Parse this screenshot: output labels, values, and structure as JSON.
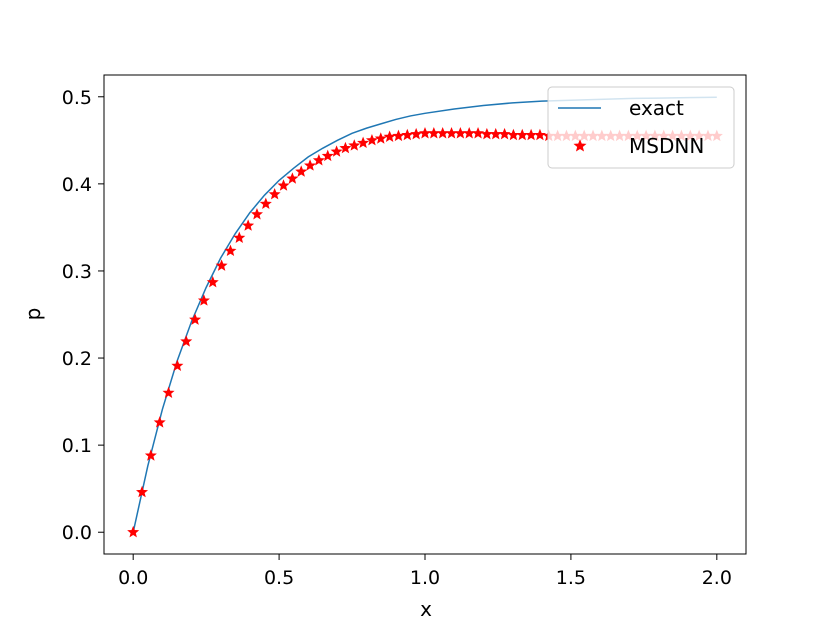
{
  "chart_data": {
    "type": "line",
    "title": "",
    "xlabel": "x",
    "ylabel": "p",
    "xlim": [
      -0.1,
      2.1
    ],
    "ylim": [
      -0.025,
      0.525
    ],
    "xticks": [
      0.0,
      0.5,
      1.0,
      1.5,
      2.0
    ],
    "xtick_labels": [
      "0.0",
      "0.5",
      "1.0",
      "1.5",
      "2.0"
    ],
    "yticks": [
      0.0,
      0.1,
      0.2,
      0.3,
      0.4,
      0.5
    ],
    "ytick_labels": [
      "0.0",
      "0.1",
      "0.2",
      "0.3",
      "0.4",
      "0.5"
    ],
    "grid": false,
    "legend": {
      "placement": "upper-right"
    },
    "series": [
      {
        "name": "exact",
        "kind": "line",
        "color": "#1f77b4",
        "x": [
          0,
          0.05,
          0.1,
          0.15,
          0.2,
          0.25,
          0.3,
          0.35,
          0.4,
          0.45,
          0.5,
          0.55,
          0.6,
          0.65,
          0.7,
          0.75,
          0.8,
          0.85,
          0.9,
          0.95,
          1.0,
          1.1,
          1.2,
          1.3,
          1.4,
          1.5,
          1.6,
          1.7,
          1.8,
          1.9,
          2.0
        ],
        "y": [
          0,
          0.076,
          0.141,
          0.196,
          0.242,
          0.281,
          0.315,
          0.343,
          0.367,
          0.387,
          0.404,
          0.418,
          0.431,
          0.441,
          0.45,
          0.458,
          0.464,
          0.469,
          0.474,
          0.478,
          0.481,
          0.486,
          0.49,
          0.493,
          0.495,
          0.496,
          0.497,
          0.498,
          0.4985,
          0.499,
          0.4995
        ]
      },
      {
        "name": "MSDNN",
        "kind": "scatter",
        "marker": "star",
        "color": "#ff0000",
        "x": [
          0,
          0.0303,
          0.0606,
          0.0909,
          0.1212,
          0.1515,
          0.1818,
          0.2121,
          0.2424,
          0.2727,
          0.303,
          0.3333,
          0.3636,
          0.3939,
          0.4242,
          0.4545,
          0.4848,
          0.5152,
          0.5455,
          0.5758,
          0.6061,
          0.6364,
          0.6667,
          0.697,
          0.7273,
          0.7576,
          0.7879,
          0.8182,
          0.8485,
          0.8788,
          0.9091,
          0.9394,
          0.9697,
          1.0,
          1.0303,
          1.0606,
          1.0909,
          1.1212,
          1.1515,
          1.1818,
          1.2121,
          1.2424,
          1.2727,
          1.303,
          1.3333,
          1.3636,
          1.3939,
          1.4242,
          1.4545,
          1.4848,
          1.5152,
          1.5455,
          1.5758,
          1.6061,
          1.6364,
          1.6667,
          1.697,
          1.7273,
          1.7576,
          1.7879,
          1.8182,
          1.8485,
          1.8788,
          1.9091,
          1.9394,
          1.9697,
          2.0
        ],
        "y": [
          0.0,
          0.046,
          0.088,
          0.126,
          0.16,
          0.191,
          0.219,
          0.244,
          0.266,
          0.287,
          0.306,
          0.323,
          0.338,
          0.352,
          0.365,
          0.377,
          0.388,
          0.398,
          0.406,
          0.414,
          0.421,
          0.427,
          0.432,
          0.437,
          0.441,
          0.444,
          0.447,
          0.45,
          0.452,
          0.454,
          0.455,
          0.456,
          0.457,
          0.458,
          0.458,
          0.458,
          0.458,
          0.458,
          0.458,
          0.458,
          0.457,
          0.457,
          0.457,
          0.456,
          0.456,
          0.456,
          0.456,
          0.455,
          0.455,
          0.455,
          0.455,
          0.455,
          0.455,
          0.455,
          0.455,
          0.455,
          0.455,
          0.455,
          0.455,
          0.455,
          0.455,
          0.455,
          0.455,
          0.455,
          0.455,
          0.455,
          0.455
        ]
      }
    ]
  }
}
